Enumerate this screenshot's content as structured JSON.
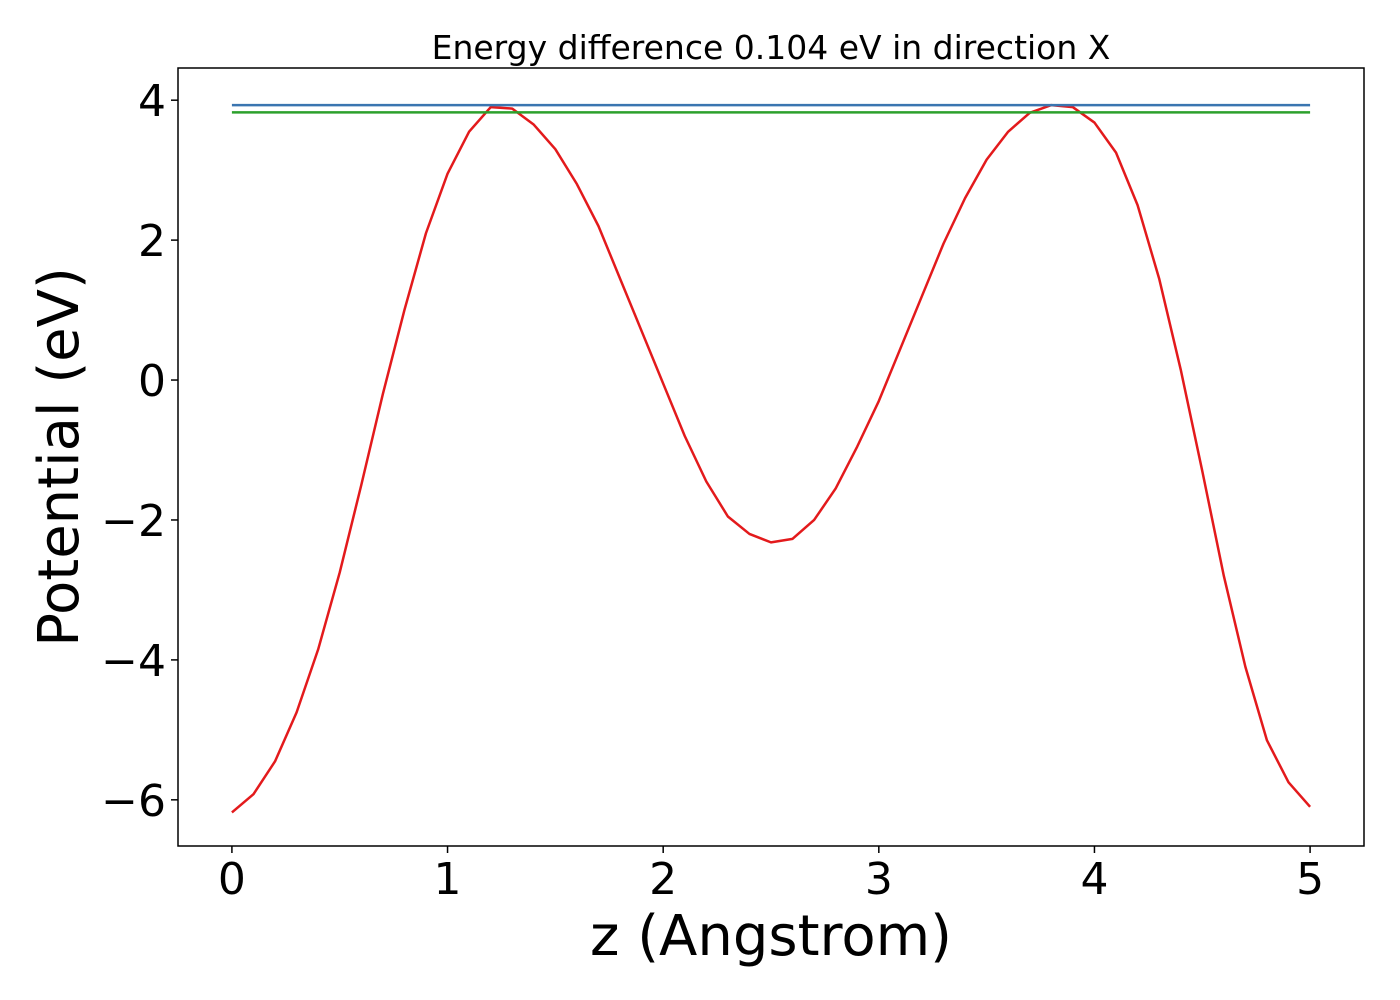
{
  "chart_data": {
    "type": "line",
    "title": "Energy difference 0.104 eV in direction X",
    "xlabel": "z (Angstrom)",
    "ylabel": "Potential (eV)",
    "xlim": [
      -0.25,
      5.25
    ],
    "ylim": [
      -6.66,
      4.46
    ],
    "xticks": [
      0,
      1,
      2,
      3,
      4,
      5
    ],
    "yticks": [
      {
        "value": -6,
        "label": "−6"
      },
      {
        "value": -4,
        "label": "−4"
      },
      {
        "value": -2,
        "label": "−2"
      },
      0,
      2,
      4
    ],
    "series": [
      {
        "color": "#e31a1c",
        "x": [
          0,
          0.1,
          0.2,
          0.3,
          0.4,
          0.5,
          0.6,
          0.7,
          0.8,
          0.9,
          1.0,
          1.1,
          1.2,
          1.3,
          1.4,
          1.5,
          1.6,
          1.7,
          1.8,
          1.9,
          2.0,
          2.1,
          2.2,
          2.3,
          2.4,
          2.5,
          2.6,
          2.7,
          2.8,
          2.9,
          3.0,
          3.1,
          3.2,
          3.3,
          3.4,
          3.5,
          3.6,
          3.7,
          3.8,
          3.9,
          4.0,
          4.1,
          4.2,
          4.3,
          4.4,
          4.5,
          4.6,
          4.7,
          4.8,
          4.9,
          5.0
        ],
        "values": [
          -6.18,
          -5.92,
          -5.45,
          -4.75,
          -3.85,
          -2.75,
          -1.5,
          -0.2,
          1.0,
          2.1,
          2.95,
          3.55,
          3.9,
          3.88,
          3.65,
          3.3,
          2.8,
          2.2,
          1.45,
          0.7,
          -0.05,
          -0.8,
          -1.45,
          -1.95,
          -2.2,
          -2.32,
          -2.27,
          -2.0,
          -1.55,
          -0.95,
          -0.3,
          0.45,
          1.2,
          1.95,
          2.6,
          3.15,
          3.55,
          3.82,
          3.93,
          3.9,
          3.68,
          3.25,
          2.5,
          1.45,
          0.15,
          -1.3,
          -2.8,
          -4.1,
          -5.15,
          -5.75,
          -6.1
        ]
      },
      {
        "color": "#3a75b0",
        "x": [
          0,
          5
        ],
        "values": [
          3.93,
          3.93
        ]
      },
      {
        "color": "#2ca02c",
        "x": [
          0,
          5
        ],
        "values": [
          3.826,
          3.826
        ]
      }
    ]
  }
}
